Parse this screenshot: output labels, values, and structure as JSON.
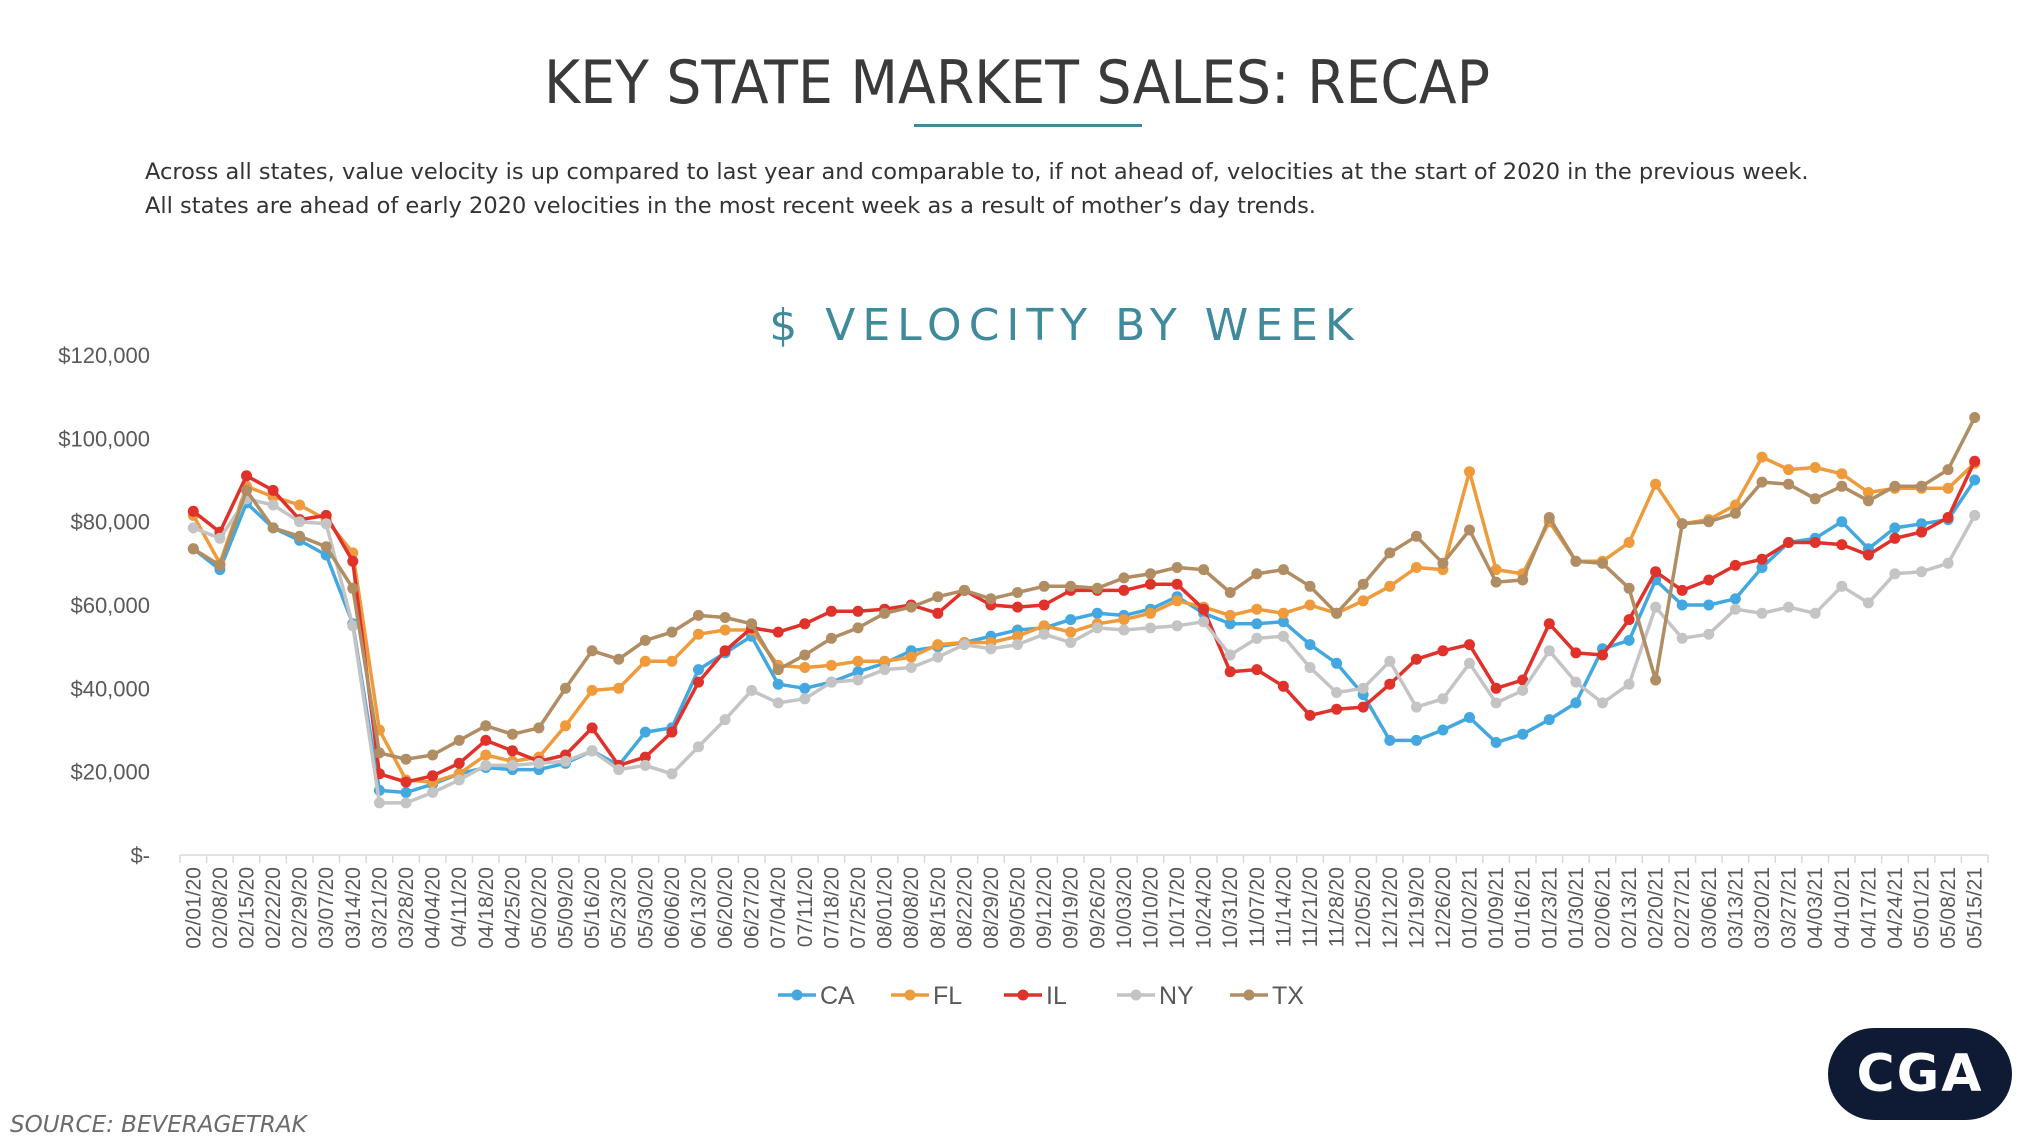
{
  "header": {
    "title": "KEY STATE MARKET SALES: RECAP",
    "subtitle_line1": "Across all states, value velocity is up compared to last year and comparable to, if not ahead of, velocities at the start of 2020 in the previous week.",
    "subtitle_line2": "All states are ahead of early 2020 velocities in the most recent week as a result of mother’s day trends."
  },
  "footer": {
    "source": "SOURCE: BEVERAGETRAK",
    "logo": "CGA"
  },
  "colors": {
    "CA": "#44a8e0",
    "FL": "#ef9a3b",
    "IL": "#e0312a",
    "NY": "#c4c4c4",
    "TX": "#b08d62",
    "title_accent": "#3f8a9b"
  },
  "chart_data": {
    "type": "line",
    "title": "$ VELOCITY BY WEEK",
    "xlabel": "",
    "ylabel": "",
    "ylim": [
      0,
      120000
    ],
    "yticks": [
      0,
      20000,
      40000,
      60000,
      80000,
      100000,
      120000
    ],
    "ytick_labels": [
      "$-",
      "$20,000",
      "$40,000",
      "$60,000",
      "$80,000",
      "$100,000",
      "$120,000"
    ],
    "grid": false,
    "legend": "bottom-center",
    "categories": [
      "02/01/20",
      "02/08/20",
      "02/15/20",
      "02/22/20",
      "02/29/20",
      "03/07/20",
      "03/14/20",
      "03/21/20",
      "03/28/20",
      "04/04/20",
      "04/11/20",
      "04/18/20",
      "04/25/20",
      "05/02/20",
      "05/09/20",
      "05/16/20",
      "05/23/20",
      "05/30/20",
      "06/06/20",
      "06/13/20",
      "06/20/20",
      "06/27/20",
      "07/04/20",
      "07/11/20",
      "07/18/20",
      "07/25/20",
      "08/01/20",
      "08/08/20",
      "08/15/20",
      "08/22/20",
      "08/29/20",
      "09/05/20",
      "09/12/20",
      "09/19/20",
      "09/26/20",
      "10/03/20",
      "10/10/20",
      "10/17/20",
      "10/24/20",
      "10/31/20",
      "11/07/20",
      "11/14/20",
      "11/21/20",
      "11/28/20",
      "12/05/20",
      "12/12/20",
      "12/19/20",
      "12/26/20",
      "01/02/21",
      "01/09/21",
      "01/16/21",
      "01/23/21",
      "01/30/21",
      "02/06/21",
      "02/13/21",
      "02/20/21",
      "02/27/21",
      "03/06/21",
      "03/13/21",
      "03/20/21",
      "03/27/21",
      "04/03/21",
      "04/10/21",
      "04/17/21",
      "04/24/21",
      "05/01/21",
      "05/08/21",
      "05/15/21"
    ],
    "x_tick_labels": [
      "02/01/20",
      "02/08/20",
      "02/15/20",
      "02/22/20",
      "02/29/20",
      "03/07/20",
      "03/14/20",
      "03/21/20",
      "03/28/20",
      "04/04/20",
      "04/11/20",
      "04/18/20",
      "04/25/20",
      "05/02/20",
      "05/09/20",
      "05/16/20",
      "05/23/20",
      "05/30/20",
      "06/06/20",
      "06/13/20",
      "06/20/20",
      "06/27/20",
      "07/04/20",
      "07/11/20",
      "07/18/20",
      "07/25/20",
      "08/01/20",
      "08/08/20",
      "08/15/20",
      "08/22/20",
      "08/29/20",
      "09/05/20",
      "09/12/20",
      "09/19/20",
      "09/26/20",
      "10/03/20",
      "10/10/20",
      "10/17/20",
      "10/24/20",
      "10/31/20",
      "11/07/20",
      "11/14/20",
      "11/21/20",
      "11/28/20",
      "12/05/20",
      "12/12/20",
      "12/19/20",
      "12/26/20",
      "01/02/21",
      "01/09/21",
      "01/16/21",
      "01/23/21",
      "01/30/21",
      "02/06/21",
      "02/13/21",
      "02/20/21",
      "02/27/21",
      "03/06/21",
      "03/13/21",
      "03/20/21",
      "03/27/21",
      "04/03/21",
      "04/10/21",
      "04/17/21",
      "04/24/21",
      "05/01/21",
      "05/08/21",
      "05/15/21"
    ],
    "series": [
      {
        "name": "CA",
        "values": [
          73500,
          68500,
          84500,
          78500,
          75500,
          72000,
          55500,
          15500,
          15000,
          17000,
          19500,
          21000,
          20500,
          20500,
          22000,
          25000,
          21500,
          29500,
          30500,
          44500,
          48500,
          52500,
          41000,
          40000,
          41500,
          44000,
          46000,
          49000,
          50000,
          51000,
          52500,
          54000,
          54500,
          56500,
          58000,
          57500,
          59000,
          62000,
          58000,
          55500,
          55500,
          56000,
          50500,
          46000,
          38500,
          27500,
          27500,
          30000,
          33000,
          27000,
          29000,
          32500,
          36500,
          49500,
          51500,
          66000,
          60000,
          60000,
          61500,
          69000,
          75000,
          76000,
          80000,
          73500,
          78500,
          79500,
          80500,
          90000
        ]
      },
      {
        "name": "FL",
        "values": [
          81500,
          70000,
          88500,
          86000,
          84000,
          80500,
          72500,
          30000,
          18000,
          17500,
          19500,
          24000,
          22500,
          23500,
          31000,
          39500,
          40000,
          46500,
          46500,
          53000,
          54000,
          54000,
          45500,
          45000,
          45500,
          46500,
          46500,
          47500,
          50500,
          51000,
          51000,
          52500,
          55000,
          53500,
          55500,
          56500,
          58000,
          61000,
          59500,
          57500,
          59000,
          58000,
          60000,
          58000,
          61000,
          64500,
          69000,
          68500,
          92000,
          68500,
          67500,
          80000,
          70500,
          70500,
          75000,
          89000,
          79500,
          80500,
          84000,
          95500,
          92500,
          93000,
          91500,
          87000,
          88000,
          88000,
          88000,
          94000
        ]
      },
      {
        "name": "IL",
        "values": [
          82500,
          77500,
          91000,
          87500,
          80500,
          81500,
          70500,
          19500,
          17500,
          19000,
          22000,
          27500,
          25000,
          22500,
          24000,
          30500,
          21500,
          23500,
          29500,
          41500,
          49000,
          54500,
          53500,
          55500,
          58500,
          58500,
          59000,
          60000,
          58000,
          63500,
          60000,
          59500,
          60000,
          63500,
          63500,
          63500,
          65000,
          65000,
          59000,
          44000,
          44500,
          40500,
          33500,
          35000,
          35500,
          41000,
          47000,
          49000,
          50500,
          40000,
          42000,
          55500,
          48500,
          48000,
          56500,
          68000,
          63500,
          66000,
          69500,
          71000,
          75000,
          75000,
          74500,
          72000,
          76000,
          77500,
          81000,
          94500
        ]
      },
      {
        "name": "NY",
        "values": [
          78500,
          76000,
          85500,
          84000,
          80000,
          79500,
          55000,
          12500,
          12500,
          15000,
          18000,
          21500,
          21500,
          22000,
          22500,
          25000,
          20500,
          21500,
          19500,
          26000,
          32500,
          39500,
          36500,
          37500,
          41500,
          42000,
          44500,
          45000,
          47500,
          50500,
          49500,
          50500,
          53000,
          51000,
          54500,
          54000,
          54500,
          55000,
          56000,
          48000,
          52000,
          52500,
          45000,
          39000,
          40000,
          46500,
          35500,
          37500,
          46000,
          36500,
          39500,
          49000,
          41500,
          36500,
          41000,
          59500,
          52000,
          53000,
          59000,
          58000,
          59500,
          58000,
          64500,
          60500,
          67500,
          68000,
          70000,
          81500
        ]
      },
      {
        "name": "TX",
        "values": [
          73500,
          69500,
          87500,
          78500,
          76500,
          74000,
          64000,
          24500,
          23000,
          24000,
          27500,
          31000,
          29000,
          30500,
          40000,
          49000,
          47000,
          51500,
          53500,
          57500,
          57000,
          55500,
          44500,
          48000,
          52000,
          54500,
          58000,
          59500,
          62000,
          63500,
          61500,
          63000,
          64500,
          64500,
          64000,
          66500,
          67500,
          69000,
          68500,
          63000,
          67500,
          68500,
          64500,
          58000,
          65000,
          72500,
          76500,
          70000,
          78000,
          65500,
          66000,
          81000,
          70500,
          70000,
          64000,
          42000,
          79500,
          80000,
          82000,
          89500,
          89000,
          85500,
          88500,
          85000,
          88500,
          88500,
          92500,
          105000
        ]
      }
    ]
  }
}
